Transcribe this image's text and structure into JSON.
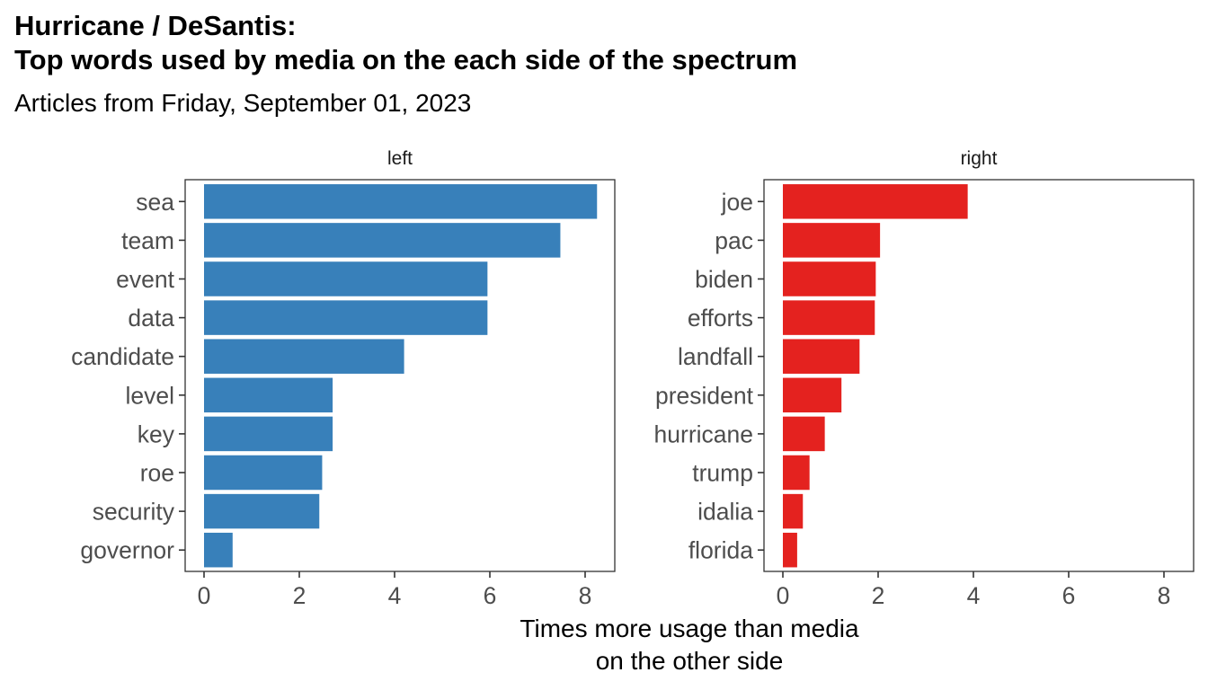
{
  "chart_data": {
    "type": "bar",
    "orientation": "horizontal",
    "title_line1": "Hurricane / DeSantis:",
    "title_line2": "Top words used by media on the each side of the spectrum",
    "subtitle": "Articles from Friday, September 01, 2023",
    "xlabel": "Times more usage than media\non the other side",
    "xlim": [
      0,
      8.5
    ],
    "xticks": [
      0,
      2,
      4,
      6,
      8
    ],
    "grid": false,
    "panels": [
      {
        "name": "left",
        "color": "#3880BA",
        "categories": [
          "sea",
          "team",
          "event",
          "data",
          "candidate",
          "level",
          "key",
          "roe",
          "security",
          "governor"
        ],
        "values": [
          8.25,
          7.48,
          5.95,
          5.95,
          4.2,
          2.7,
          2.7,
          2.48,
          2.42,
          0.6
        ]
      },
      {
        "name": "right",
        "color": "#E4221F",
        "categories": [
          "joe",
          "pac",
          "biden",
          "efforts",
          "landfall",
          "president",
          "hurricane",
          "trump",
          "idalia",
          "florida"
        ],
        "values": [
          3.88,
          2.04,
          1.95,
          1.93,
          1.61,
          1.23,
          0.88,
          0.56,
          0.42,
          0.3
        ]
      }
    ]
  }
}
